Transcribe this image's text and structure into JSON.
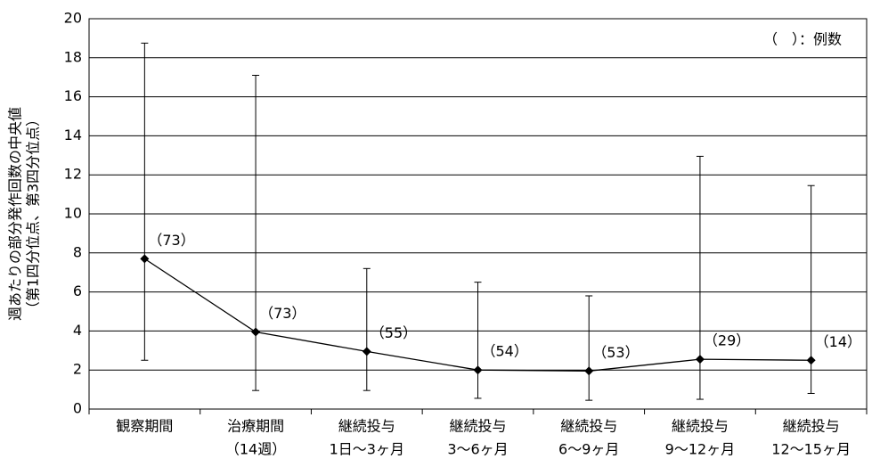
{
  "chart_data": {
    "type": "line",
    "ylabel": [
      "週あたりの部分発作回数の中央値",
      "（第1四分位点、第3四分位点）"
    ],
    "annotation": "（　）：例数",
    "categories": [
      [
        "観察期間"
      ],
      [
        "治療期間",
        "（14週）"
      ],
      [
        "継続投与",
        "1日～3ヶ月"
      ],
      [
        "継続投与",
        "3～6ヶ月"
      ],
      [
        "継続投与",
        "6～9ヶ月"
      ],
      [
        "継続投与",
        "9～12ヶ月"
      ],
      [
        "継続投与",
        "12～15ヶ月"
      ]
    ],
    "series": [
      {
        "color": "#000000",
        "values": [
          7.7,
          3.95,
          2.95,
          2.0,
          1.95,
          2.55,
          2.5
        ],
        "lower": [
          2.5,
          0.95,
          0.95,
          0.55,
          0.45,
          0.5,
          0.8
        ],
        "upper": [
          18.75,
          17.1,
          7.2,
          6.5,
          5.8,
          12.95,
          11.45
        ],
        "counts": [
          "（73）",
          "（73）",
          "（55）",
          "（54）",
          "（53）",
          "（29）",
          "（14）"
        ]
      }
    ],
    "ylim": [
      0,
      20
    ],
    "yticks": [
      0,
      2,
      4,
      6,
      8,
      10,
      12,
      14,
      16,
      18,
      20
    ],
    "grid": true
  }
}
